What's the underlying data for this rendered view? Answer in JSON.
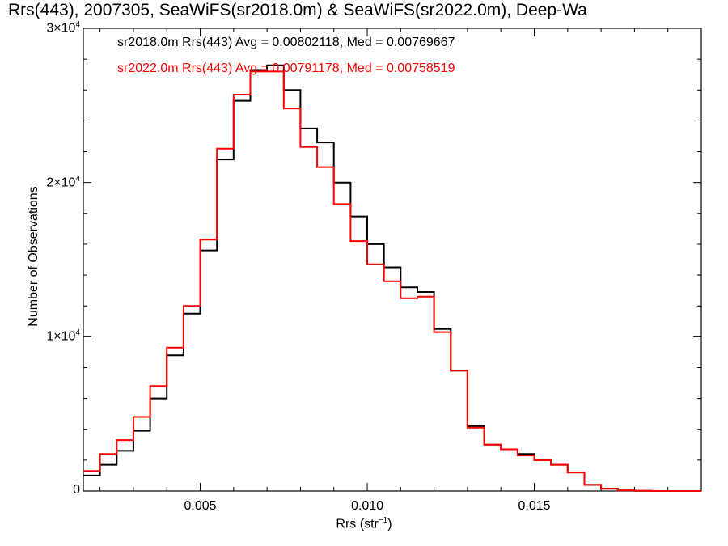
{
  "chart_data": {
    "type": "line",
    "title": "Rrs(443), 2007305, SeaWiFS(sr2018.0m) & SeaWiFS(sr2022.0m), Deep-Wa",
    "xlabel": "Rrs (str",
    "xlabel_sup": "−1",
    "xlabel_close": ")",
    "ylabel": "Number of Observations",
    "xlim": [
      0.0015,
      0.02
    ],
    "ylim": [
      0,
      30000
    ],
    "xticks": [
      {
        "value": 0.005,
        "label": "0.005"
      },
      {
        "value": 0.01,
        "label": "0.010"
      },
      {
        "value": 0.015,
        "label": "0.015"
      }
    ],
    "yticks": [
      {
        "value": 0,
        "label": "0",
        "exp": ""
      },
      {
        "value": 10000,
        "label": "1×10",
        "exp": "4"
      },
      {
        "value": 20000,
        "label": "2×10",
        "exp": "4"
      },
      {
        "value": 30000,
        "label": "3×10",
        "exp": "4"
      }
    ],
    "legend": {
      "position": "top-left",
      "entries": [
        {
          "text": "sr2018.0m Rrs(443) Avg = 0.00802118, Med = 0.00769667",
          "color": "#000000"
        },
        {
          "text": "sr2022.0m Rrs(443) Avg = 0.00791178, Med = 0.00758519",
          "color": "#ff0000"
        }
      ]
    },
    "series": [
      {
        "color": "#000000",
        "x": [
          0.0015,
          0.002,
          0.0025,
          0.003,
          0.0035,
          0.004,
          0.0045,
          0.005,
          0.0055,
          0.006,
          0.0065,
          0.007,
          0.0075,
          0.008,
          0.0085,
          0.009,
          0.0095,
          0.01,
          0.0105,
          0.011,
          0.0115,
          0.012,
          0.0125,
          0.013,
          0.0135,
          0.014,
          0.0145,
          0.015,
          0.0155,
          0.016,
          0.0165,
          0.017,
          0.0175,
          0.018,
          0.0185,
          0.019,
          0.02
        ],
        "y": [
          1000,
          1700,
          2600,
          3900,
          6000,
          8800,
          11500,
          15600,
          21500,
          25300,
          27300,
          27600,
          26000,
          23500,
          22600,
          20000,
          17800,
          16000,
          14500,
          13200,
          12900,
          10500,
          7800,
          4200,
          3000,
          2700,
          2400,
          2000,
          1700,
          1200,
          400,
          150,
          40,
          10,
          0,
          0,
          0
        ]
      },
      {
        "color": "#ff0000",
        "x": [
          0.0015,
          0.002,
          0.0025,
          0.003,
          0.0035,
          0.004,
          0.0045,
          0.005,
          0.0055,
          0.006,
          0.0065,
          0.007,
          0.0075,
          0.008,
          0.0085,
          0.009,
          0.0095,
          0.01,
          0.0105,
          0.011,
          0.0115,
          0.012,
          0.0125,
          0.013,
          0.0135,
          0.014,
          0.0145,
          0.015,
          0.0155,
          0.016,
          0.0165,
          0.017,
          0.0175,
          0.018,
          0.0185,
          0.019,
          0.02
        ],
        "y": [
          1300,
          2400,
          3300,
          4800,
          6800,
          9300,
          12000,
          16300,
          22200,
          25700,
          27200,
          27200,
          24800,
          22300,
          21000,
          18600,
          16200,
          14700,
          13600,
          12500,
          12600,
          10300,
          7800,
          4100,
          3000,
          2700,
          2300,
          2000,
          1700,
          1200,
          400,
          150,
          40,
          10,
          0,
          0,
          0
        ]
      }
    ]
  }
}
